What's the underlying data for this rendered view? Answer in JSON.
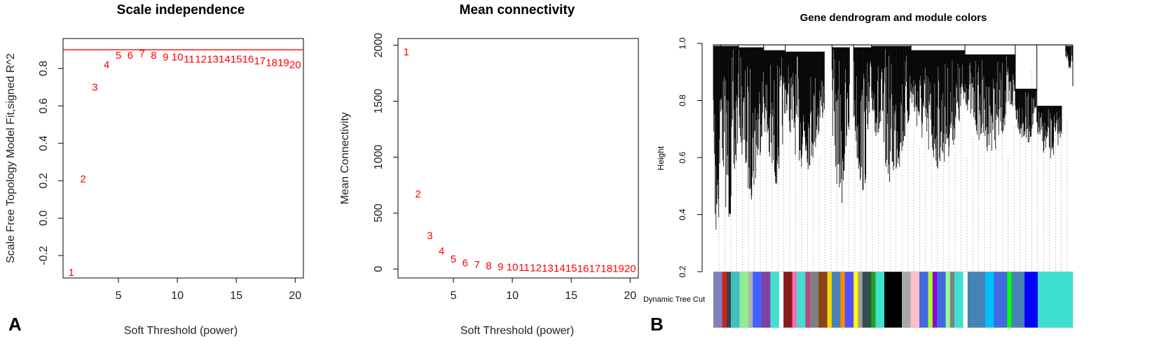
{
  "panel_labels": {
    "a": "A",
    "b": "B"
  },
  "chart_data": [
    {
      "id": "scale-independence",
      "type": "scatter",
      "title": "Scale independence",
      "xlabel": "Soft Threshold (power)",
      "ylabel": "Scale Free Topology Model Fit,signed R^2",
      "xlim": [
        0.3,
        20.7
      ],
      "ylim": [
        -0.32,
        0.96
      ],
      "xticks": [
        5,
        10,
        15,
        20
      ],
      "yticks": [
        -0.2,
        0.0,
        0.2,
        0.4,
        0.6,
        0.8
      ],
      "ytick_labels": [
        "-0.2",
        "0.0",
        "0.2",
        "0.4",
        "0.6",
        "0.8"
      ],
      "hline": 0.9,
      "x": [
        1,
        2,
        3,
        4,
        5,
        6,
        7,
        8,
        9,
        10,
        11,
        12,
        13,
        14,
        15,
        16,
        17,
        18,
        19,
        20
      ],
      "y": [
        -0.29,
        0.21,
        0.7,
        0.82,
        0.87,
        0.87,
        0.88,
        0.87,
        0.86,
        0.86,
        0.85,
        0.85,
        0.85,
        0.85,
        0.85,
        0.85,
        0.84,
        0.83,
        0.83,
        0.82
      ],
      "labels": [
        "1",
        "2",
        "3",
        "4",
        "5",
        "6",
        "7",
        "8",
        "9",
        "10",
        "11",
        "12",
        "13",
        "14",
        "15",
        "16",
        "17",
        "18",
        "19",
        "20"
      ]
    },
    {
      "id": "mean-connectivity",
      "type": "scatter",
      "title": "Mean connectivity",
      "xlabel": "Soft Threshold (power)",
      "ylabel": "Mean Connectivity",
      "xlim": [
        0.3,
        20.7
      ],
      "ylim": [
        -80,
        2060
      ],
      "xticks": [
        5,
        10,
        15,
        20
      ],
      "yticks": [
        0,
        500,
        1000,
        1500,
        2000
      ],
      "ytick_labels": [
        "0",
        "500",
        "1000",
        "1500",
        "2000"
      ],
      "x": [
        1,
        2,
        3,
        4,
        5,
        6,
        7,
        8,
        9,
        10,
        11,
        12,
        13,
        14,
        15,
        16,
        17,
        18,
        19,
        20
      ],
      "y": [
        1940,
        670,
        300,
        160,
        90,
        55,
        38,
        28,
        20,
        16,
        13,
        11,
        9,
        8,
        7,
        6,
        5,
        4,
        3,
        3
      ],
      "labels": [
        "1",
        "2",
        "3",
        "4",
        "5",
        "6",
        "7",
        "8",
        "9",
        "10",
        "11",
        "12",
        "13",
        "14",
        "15",
        "16",
        "17",
        "18",
        "19",
        "20"
      ]
    },
    {
      "id": "gene-dendrogram",
      "type": "dendrogram",
      "title": "Gene dendrogram and module colors",
      "ylabel": "Height",
      "ylim": [
        0.2,
        1.0
      ],
      "yticks": [
        0.2,
        0.4,
        0.6,
        0.8,
        1.0
      ],
      "ytick_labels": [
        "0.2",
        "0.4",
        "0.6",
        "0.8",
        "1.0"
      ],
      "color_row_label": "Dynamic Tree Cut",
      "module_colors": [
        {
          "color": "#8080c0",
          "w": 2
        },
        {
          "color": "#d02020",
          "w": 1
        },
        {
          "color": "#404040",
          "w": 1
        },
        {
          "color": "#40c0c0",
          "w": 2
        },
        {
          "color": "#90ee90",
          "w": 2
        },
        {
          "color": "#b0b0b0",
          "w": 1
        },
        {
          "color": "#4060ff",
          "w": 2
        },
        {
          "color": "#8040a0",
          "w": 2
        },
        {
          "color": "#40e0d0",
          "w": 2
        },
        {
          "color": "#ffffff",
          "w": 1
        },
        {
          "color": "#8b1a1a",
          "w": 2
        },
        {
          "color": "#ff69b4",
          "w": 1
        },
        {
          "color": "#40e0d0",
          "w": 2
        },
        {
          "color": "#c04080",
          "w": 1
        },
        {
          "color": "#808080",
          "w": 2
        },
        {
          "color": "#8b4513",
          "w": 2
        },
        {
          "color": "#ffd700",
          "w": 1
        },
        {
          "color": "#4682b4",
          "w": 2
        },
        {
          "color": "#ff8c00",
          "w": 1
        },
        {
          "color": "#5050ff",
          "w": 2
        },
        {
          "color": "#ffff00",
          "w": 1
        },
        {
          "color": "#a0a0a0",
          "w": 1
        },
        {
          "color": "#2f4f4f",
          "w": 2
        },
        {
          "color": "#20a020",
          "w": 1
        },
        {
          "color": "#40e0d0",
          "w": 2
        },
        {
          "color": "#000000",
          "w": 4
        },
        {
          "color": "#a9a9a9",
          "w": 2
        },
        {
          "color": "#ffc0cb",
          "w": 2
        },
        {
          "color": "#4169e1",
          "w": 2
        },
        {
          "color": "#adff2f",
          "w": 1
        },
        {
          "color": "#9400d3",
          "w": 1
        },
        {
          "color": "#4169e1",
          "w": 2
        },
        {
          "color": "#98fb98",
          "w": 1
        },
        {
          "color": "#808080",
          "w": 1
        },
        {
          "color": "#40e0d0",
          "w": 2
        },
        {
          "color": "#ffffff",
          "w": 1
        },
        {
          "color": "#4682b4",
          "w": 4
        },
        {
          "color": "#00bfff",
          "w": 2
        },
        {
          "color": "#4169e1",
          "w": 3
        },
        {
          "color": "#00ff00",
          "w": 1
        },
        {
          "color": "#4682b4",
          "w": 3
        },
        {
          "color": "#0000ff",
          "w": 3
        },
        {
          "color": "#40e0d0",
          "w": 8
        }
      ]
    }
  ]
}
